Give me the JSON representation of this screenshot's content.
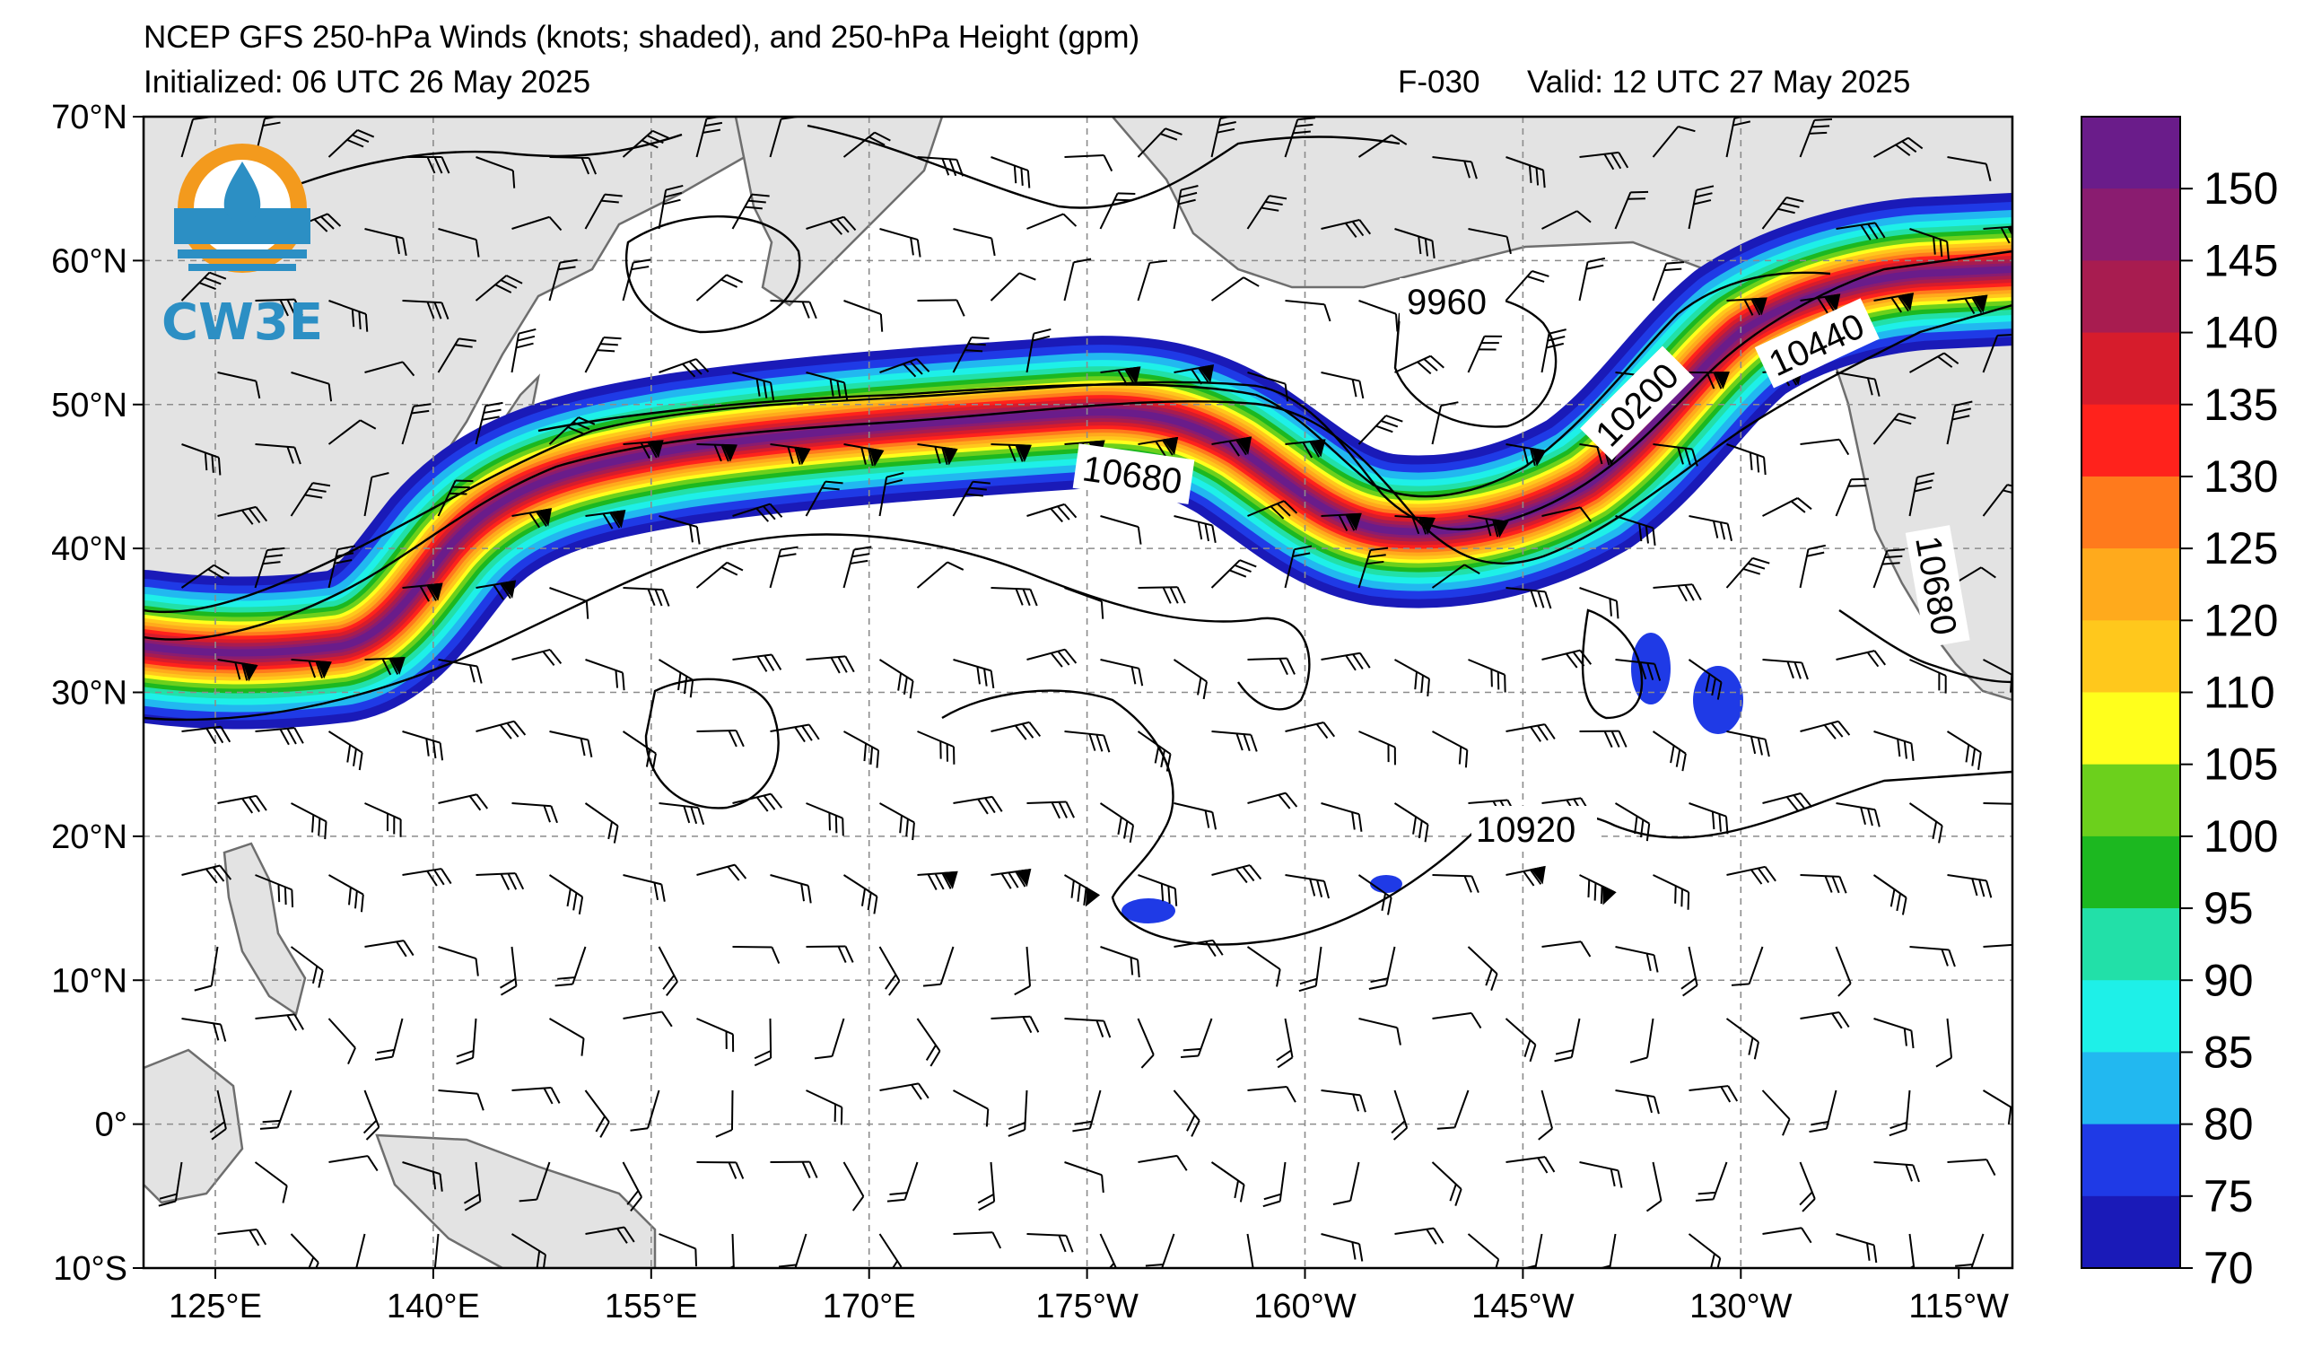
{
  "header": {
    "title": "NCEP GFS 250-hPa Winds (knots; shaded), and 250-hPa Height (gpm)",
    "initialized": "Initialized: 06 UTC 26 May 2025",
    "forecast": "F-030",
    "valid": "Valid: 12 UTC 27 May 2025"
  },
  "logo": {
    "text": "CW3E"
  },
  "map": {
    "lon_ticks": [
      "125°E",
      "140°E",
      "155°E",
      "170°E",
      "175°W",
      "160°W",
      "145°W",
      "130°W",
      "115°W"
    ],
    "lat_ticks": [
      "70°N",
      "60°N",
      "50°N",
      "40°N",
      "30°N",
      "20°N",
      "10°N",
      "0°",
      "10°S"
    ],
    "contour_labels": [
      "9960",
      "10200",
      "10440",
      "10680",
      "10680",
      "10920"
    ],
    "colors": {
      "land": "#e3e3e3",
      "coast": "#6e6e6e",
      "grid": "#8c8c8c",
      "contour": "#000000"
    }
  },
  "colorbar": {
    "ticks": [
      "150",
      "145",
      "140",
      "135",
      "130",
      "125",
      "120",
      "110",
      "105",
      "100",
      "95",
      "90",
      "85",
      "80",
      "75",
      "70"
    ],
    "colors": [
      "#1a1ab8",
      "#1f3ae6",
      "#22b8f0",
      "#1ef0e8",
      "#22e0a8",
      "#1cb820",
      "#6cd01c",
      "#ffff1c",
      "#ffc81c",
      "#ffaa1c",
      "#ff7a1c",
      "#ff221c",
      "#d61c2c",
      "#a81c50",
      "#8a1c70",
      "#6a1c8a"
    ]
  }
}
